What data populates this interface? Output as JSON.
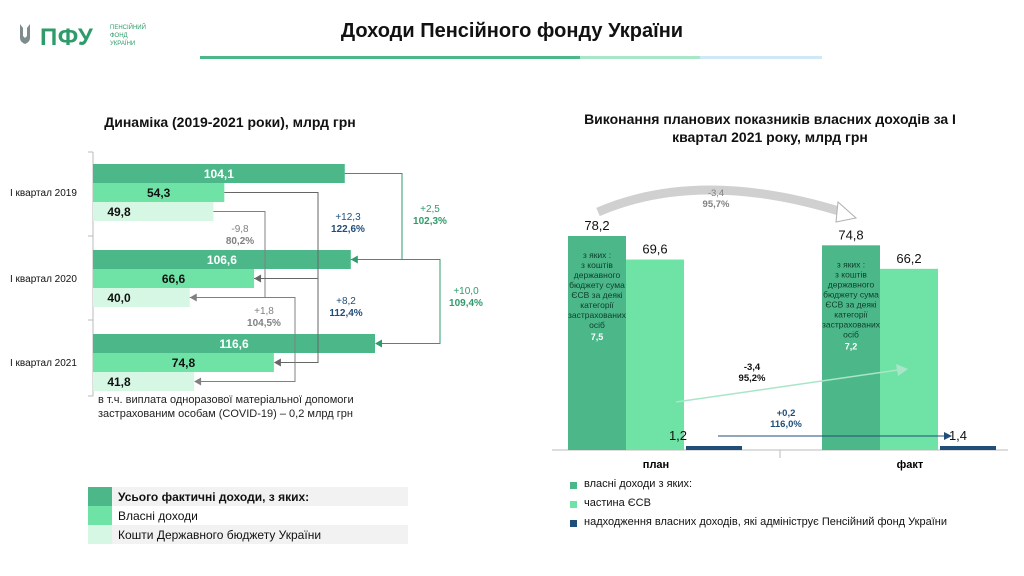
{
  "header": {
    "logo_text": "ПФУ",
    "logo_sub": "ПЕНСІЙНИЙ ФОНД УКРАЇНИ",
    "title": "Доходи Пенсійного фонду України"
  },
  "colors": {
    "total": "#4cb88a",
    "own": "#6fe3a6",
    "budget": "#d6f7e4",
    "admin": "#1f4e79",
    "accent_teal": "#2e9b6a",
    "muted_gray": "#808080",
    "blue_text": "#1f4e79",
    "legend_bg": "#f2f2f2"
  },
  "chart_data": [
    {
      "type": "bar",
      "orientation": "horizontal",
      "title": "Динаміка (2019-2021 роки), млрд грн",
      "categories": [
        "І квартал  2019",
        "І квартал  2020",
        "І квартал  2021"
      ],
      "series": [
        {
          "name": "Усього фактичні доходи, з яких:",
          "values": [
            104.1,
            106.6,
            116.6
          ],
          "labels": [
            "104,1",
            "106,6",
            "116,6"
          ]
        },
        {
          "name": "Власні доходи",
          "values": [
            54.3,
            66.6,
            74.8
          ],
          "labels": [
            "54,3",
            "66,6",
            "74,8"
          ]
        },
        {
          "name": "Кошти  Державного бюджету  України",
          "values": [
            49.8,
            40.0,
            41.8
          ],
          "labels": [
            "49,8",
            "40,0",
            "41,8"
          ]
        }
      ],
      "annotations": [
        {
          "text": "-9,8",
          "sub": "80,2%",
          "series": "budget"
        },
        {
          "text": "+12,3",
          "sub": "122,6%",
          "series": "own"
        },
        {
          "text": "+2,5",
          "sub": "102,3%",
          "series": "total"
        },
        {
          "text": "+10,0",
          "sub": "109,4%",
          "series": "total"
        },
        {
          "text": "+8,2",
          "sub": "112,4%",
          "series": "own"
        },
        {
          "text": "+1,8",
          "sub": "104,5%",
          "series": "budget"
        }
      ],
      "note": "в т.ч. виплата одноразової матеріальної допомоги застрахованим особам (COVID-19) – 0,2 млрд грн"
    },
    {
      "type": "bar",
      "title": "Виконання планових показників власних доходів за І квартал 2021 року, млрд грн",
      "categories": [
        "план",
        "факт"
      ],
      "series": [
        {
          "name": "власні доходи з яких:",
          "values": [
            78.2,
            74.8
          ],
          "labels": [
            "78,2",
            "74,8"
          ]
        },
        {
          "name": "частина ЄСВ",
          "values": [
            69.6,
            66.2
          ],
          "labels": [
            "69,6",
            "66,2"
          ]
        },
        {
          "name": "надходження власних доходів, які адмініструє Пенсійний фонд України",
          "values": [
            1.2,
            1.4
          ],
          "labels": [
            "1,2",
            "1,4"
          ]
        }
      ],
      "inner_notes": [
        {
          "text": "з яких : з коштів державного бюджету сума ЄСВ за деякі категорії застрахованих осіб",
          "value": "7,5"
        },
        {
          "text": "з яких : з коштів державного бюджету сума ЄСВ за деякі категорії застрахованих осіб",
          "value": "7,2"
        }
      ],
      "annotations": [
        {
          "text": "-3,4",
          "sub": "95,7%"
        },
        {
          "text": "-3,4",
          "sub": "95,2%"
        },
        {
          "text": "+0,2",
          "sub": "116,0%"
        }
      ]
    }
  ],
  "left_legend": [
    {
      "label": "Усього фактичні доходи, з яких:",
      "bold": true
    },
    {
      "label": "Власні доходи",
      "bold": false
    },
    {
      "label": "Кошти  Державного бюджету  України",
      "bold": false
    }
  ],
  "right_legend": [
    {
      "label": "власні доходи з яких:"
    },
    {
      "label": "частина ЄСВ"
    },
    {
      "label": "надходження власних доходів, які адмініструє Пенсійний фонд України"
    }
  ]
}
